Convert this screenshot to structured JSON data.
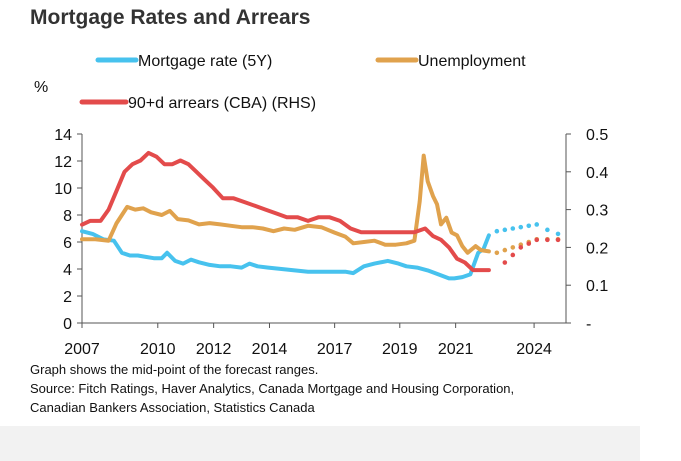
{
  "title": "Mortgage Rates and Arrears",
  "notes": {
    "line1": "Graph shows the mid-point of the forecast ranges.",
    "line2": "Source: Fitch Ratings, Haver Analytics, Canada Mortgage and Housing Corporation,",
    "line3": "Canadian Bankers Association, Statistics Canada"
  },
  "colors": {
    "mortgage": "#47c2ee",
    "unemployment": "#e0a24d",
    "arrears": "#e34b4b",
    "axis": "#555555"
  },
  "chart_data": {
    "type": "line",
    "title": "Mortgage Rates and Arrears",
    "left_axis": {
      "unit_label": "%",
      "ylim": [
        0,
        14
      ],
      "ticks": [
        "0",
        "2",
        "4",
        "6",
        "8",
        "10",
        "12",
        "14"
      ],
      "tick_values": [
        0,
        2,
        4,
        6,
        8,
        10,
        12,
        14
      ]
    },
    "right_axis": {
      "ylim": [
        0,
        0.5
      ],
      "ticks": [
        "-",
        "0.1",
        "0.2",
        "0.3",
        "0.4",
        "0.5"
      ],
      "tick_values": [
        0,
        0.1,
        0.2,
        0.3,
        0.4,
        0.5
      ]
    },
    "x_axis": {
      "xlim": [
        2007,
        2025.2
      ],
      "ticks": [
        "2007",
        "2010",
        "2012",
        "2014",
        "2017",
        "2019",
        "2021",
        "2024"
      ],
      "tick_values": [
        2007,
        2009.85,
        2011.95,
        2014.05,
        2016.5,
        2018.95,
        2021.05,
        2024.0
      ]
    },
    "grid": false,
    "legend_position": "top",
    "series": [
      {
        "name": "Mortgage rate (5Y)",
        "color_key": "mortgage",
        "axis": "left",
        "x": [
          2007.0,
          2007.4,
          2007.8,
          2008.2,
          2008.5,
          2008.8,
          2009.1,
          2009.4,
          2009.7,
          2010.0,
          2010.2,
          2010.5,
          2010.8,
          2011.1,
          2011.4,
          2011.8,
          2012.2,
          2012.6,
          2013.0,
          2013.3,
          2013.6,
          2014.0,
          2014.5,
          2015.0,
          2015.5,
          2016.0,
          2016.5,
          2016.9,
          2017.2,
          2017.6,
          2018.0,
          2018.5,
          2018.9,
          2019.2,
          2019.6,
          2020.0,
          2020.4,
          2020.8,
          2021.0,
          2021.3,
          2021.6,
          2021.9,
          2022.1,
          2022.3
        ],
        "y": [
          6.8,
          6.6,
          6.2,
          6.1,
          5.2,
          5.0,
          5.0,
          4.9,
          4.8,
          4.8,
          5.2,
          4.6,
          4.4,
          4.7,
          4.5,
          4.3,
          4.2,
          4.2,
          4.1,
          4.4,
          4.2,
          4.1,
          4.0,
          3.9,
          3.8,
          3.8,
          3.8,
          3.8,
          3.7,
          4.2,
          4.4,
          4.6,
          4.4,
          4.2,
          4.1,
          3.9,
          3.6,
          3.3,
          3.3,
          3.4,
          3.6,
          5.2,
          5.5,
          6.5
        ],
        "forecast": {
          "x": [
            2022.6,
            2022.9,
            2023.2,
            2023.5,
            2023.8,
            2024.1,
            2024.5,
            2024.9
          ],
          "y": [
            6.8,
            6.9,
            7.0,
            7.1,
            7.2,
            7.3,
            6.9,
            6.6
          ]
        }
      },
      {
        "name": "Unemployment",
        "color_key": "unemployment",
        "axis": "left",
        "x": [
          2007.0,
          2007.5,
          2008.0,
          2008.3,
          2008.7,
          2009.0,
          2009.3,
          2009.6,
          2010.0,
          2010.3,
          2010.6,
          2011.0,
          2011.4,
          2011.8,
          2012.2,
          2012.6,
          2013.0,
          2013.4,
          2013.8,
          2014.2,
          2014.6,
          2015.0,
          2015.5,
          2016.0,
          2016.5,
          2016.9,
          2017.2,
          2017.6,
          2018.0,
          2018.4,
          2018.8,
          2019.2,
          2019.5,
          2019.7,
          2019.85,
          2020.0,
          2020.2,
          2020.35,
          2020.5,
          2020.7,
          2020.9,
          2021.1,
          2021.3,
          2021.5,
          2021.8,
          2022.0,
          2022.3
        ],
        "y": [
          6.2,
          6.2,
          6.1,
          7.4,
          8.6,
          8.4,
          8.5,
          8.2,
          8.0,
          8.3,
          7.7,
          7.6,
          7.3,
          7.4,
          7.3,
          7.2,
          7.1,
          7.1,
          7.0,
          6.8,
          7.0,
          6.9,
          7.2,
          7.1,
          6.7,
          6.4,
          5.9,
          6.0,
          6.1,
          5.8,
          5.8,
          5.9,
          6.1,
          9.0,
          12.4,
          10.5,
          9.4,
          8.8,
          7.3,
          7.8,
          6.7,
          6.5,
          5.7,
          5.2,
          5.7,
          5.4,
          5.3
        ],
        "forecast": {
          "x": [
            2022.6,
            2022.9,
            2023.2,
            2023.5,
            2023.8,
            2024.1,
            2024.5,
            2024.9
          ],
          "y": [
            5.2,
            5.4,
            5.6,
            5.8,
            6.0,
            6.2,
            6.2,
            6.2
          ]
        }
      },
      {
        "name": "90+d arrears (CBA) (RHS)",
        "color_key": "arrears",
        "axis": "right",
        "x": [
          2007.0,
          2007.3,
          2007.7,
          2008.0,
          2008.3,
          2008.6,
          2008.9,
          2009.2,
          2009.5,
          2009.8,
          2010.1,
          2010.4,
          2010.7,
          2011.0,
          2011.3,
          2011.6,
          2011.9,
          2012.3,
          2012.7,
          2013.1,
          2013.5,
          2013.9,
          2014.3,
          2014.7,
          2015.1,
          2015.5,
          2015.9,
          2016.3,
          2016.7,
          2017.1,
          2017.5,
          2017.9,
          2018.3,
          2018.7,
          2019.1,
          2019.5,
          2019.9,
          2020.2,
          2020.5,
          2020.8,
          2021.1,
          2021.4,
          2021.7,
          2022.0,
          2022.3
        ],
        "y": [
          0.26,
          0.27,
          0.27,
          0.3,
          0.35,
          0.4,
          0.42,
          0.43,
          0.45,
          0.44,
          0.42,
          0.42,
          0.43,
          0.42,
          0.4,
          0.38,
          0.36,
          0.33,
          0.33,
          0.32,
          0.31,
          0.3,
          0.29,
          0.28,
          0.28,
          0.27,
          0.28,
          0.28,
          0.27,
          0.25,
          0.24,
          0.24,
          0.24,
          0.24,
          0.24,
          0.24,
          0.25,
          0.23,
          0.22,
          0.2,
          0.17,
          0.16,
          0.14,
          0.14,
          0.14
        ],
        "forecast": {
          "x": [
            2022.9,
            2023.2,
            2023.5,
            2023.8,
            2024.1,
            2024.5,
            2024.9
          ],
          "y": [
            0.16,
            0.18,
            0.2,
            0.21,
            0.22,
            0.22,
            0.22
          ]
        }
      }
    ]
  }
}
